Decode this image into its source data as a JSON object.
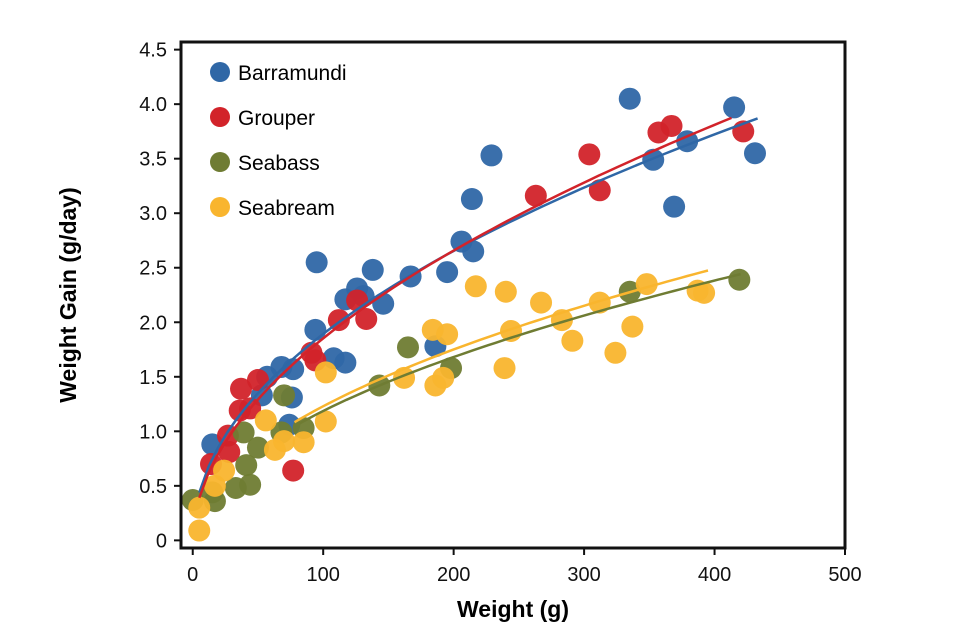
{
  "chart_data": {
    "type": "scatter",
    "title": "",
    "xlabel": "Weight (g)",
    "ylabel": "Weight Gain (g/day)",
    "xlim": [
      -9,
      500
    ],
    "ylim": [
      -0.07,
      4.57
    ],
    "xticks": [
      "0",
      "100",
      "200",
      "300",
      "400",
      "500"
    ],
    "xtick_values": [
      0,
      100,
      200,
      300,
      400,
      500
    ],
    "yticks": [
      "0",
      "0.5",
      "1.0",
      "1.5",
      "2.0",
      "2.5",
      "3.0",
      "3.5",
      "4.0",
      "4.5"
    ],
    "ytick_values": [
      0,
      0.5,
      1.0,
      1.5,
      2.0,
      2.5,
      3.0,
      3.5,
      4.0,
      4.5
    ],
    "grid": false,
    "legend_placement": "top-left",
    "series": [
      {
        "name": "Barramundi",
        "color": "#2f67a6",
        "points": [
          [
            15,
            0.88
          ],
          [
            53,
            1.33
          ],
          [
            57,
            1.5
          ],
          [
            68,
            1.59
          ],
          [
            77,
            1.57
          ],
          [
            74,
            1.06
          ],
          [
            76,
            1.31
          ],
          [
            94,
            1.93
          ],
          [
            95,
            2.55
          ],
          [
            108,
            1.67
          ],
          [
            117,
            1.63
          ],
          [
            117,
            2.21
          ],
          [
            126,
            2.31
          ],
          [
            131,
            2.24
          ],
          [
            138,
            2.48
          ],
          [
            146,
            2.17
          ],
          [
            167,
            2.42
          ],
          [
            186,
            1.78
          ],
          [
            195,
            2.46
          ],
          [
            206,
            2.74
          ],
          [
            215,
            2.65
          ],
          [
            214,
            3.13
          ],
          [
            229,
            3.53
          ],
          [
            335,
            4.05
          ],
          [
            353,
            3.49
          ],
          [
            369,
            3.06
          ],
          [
            379,
            3.66
          ],
          [
            415,
            3.97
          ],
          [
            431,
            3.55
          ]
        ],
        "trend": {
          "form": "power",
          "a": 0.2,
          "b": 0.488,
          "x_range": [
            5,
            433
          ]
        }
      },
      {
        "name": "Grouper",
        "color": "#d2232a",
        "points": [
          [
            14,
            0.7
          ],
          [
            27,
            0.96
          ],
          [
            28,
            0.81
          ],
          [
            36,
            1.19
          ],
          [
            37,
            1.39
          ],
          [
            44,
            1.21
          ],
          [
            50,
            1.47
          ],
          [
            77,
            0.64
          ],
          [
            91,
            1.72
          ],
          [
            94,
            1.65
          ],
          [
            112,
            2.02
          ],
          [
            126,
            2.2
          ],
          [
            133,
            2.03
          ],
          [
            263,
            3.16
          ],
          [
            304,
            3.54
          ],
          [
            312,
            3.21
          ],
          [
            357,
            3.74
          ],
          [
            367,
            3.8
          ],
          [
            422,
            3.75
          ]
        ],
        "trend": {
          "form": "power",
          "a": 0.169,
          "b": 0.52,
          "x_range": [
            5,
            413
          ]
        }
      },
      {
        "name": "Seabass",
        "color": "#6f7c33",
        "points": [
          [
            0,
            0.37
          ],
          [
            15,
            0.44
          ],
          [
            17,
            0.36
          ],
          [
            33,
            0.48
          ],
          [
            44,
            0.51
          ],
          [
            39,
            0.99
          ],
          [
            41,
            0.69
          ],
          [
            50,
            0.85
          ],
          [
            68,
            0.99
          ],
          [
            70,
            1.33
          ],
          [
            85,
            1.03
          ],
          [
            143,
            1.42
          ],
          [
            165,
            1.77
          ],
          [
            198,
            1.58
          ],
          [
            335,
            2.28
          ],
          [
            419,
            2.39
          ]
        ],
        "trend": {
          "form": "power",
          "a": 0.117,
          "b": 0.503,
          "x_range": [
            78,
            420
          ]
        }
      },
      {
        "name": "Seabream",
        "color": "#f9b52e",
        "points": [
          [
            5,
            0.09
          ],
          [
            5,
            0.3
          ],
          [
            17,
            0.5
          ],
          [
            24,
            0.64
          ],
          [
            56,
            1.1
          ],
          [
            63,
            0.83
          ],
          [
            70,
            0.91
          ],
          [
            85,
            0.9
          ],
          [
            102,
            1.09
          ],
          [
            102,
            1.54
          ],
          [
            162,
            1.49
          ],
          [
            184,
            1.93
          ],
          [
            195,
            1.89
          ],
          [
            186,
            1.42
          ],
          [
            192,
            1.49
          ],
          [
            217,
            2.33
          ],
          [
            240,
            2.28
          ],
          [
            239,
            1.58
          ],
          [
            244,
            1.92
          ],
          [
            267,
            2.18
          ],
          [
            283,
            2.02
          ],
          [
            291,
            1.83
          ],
          [
            312,
            2.18
          ],
          [
            324,
            1.72
          ],
          [
            337,
            1.96
          ],
          [
            348,
            2.35
          ],
          [
            387,
            2.29
          ],
          [
            392,
            2.27
          ]
        ],
        "trend": {
          "form": "power",
          "a": 0.118,
          "b": 0.509,
          "x_range": [
            78,
            395
          ]
        }
      }
    ]
  }
}
